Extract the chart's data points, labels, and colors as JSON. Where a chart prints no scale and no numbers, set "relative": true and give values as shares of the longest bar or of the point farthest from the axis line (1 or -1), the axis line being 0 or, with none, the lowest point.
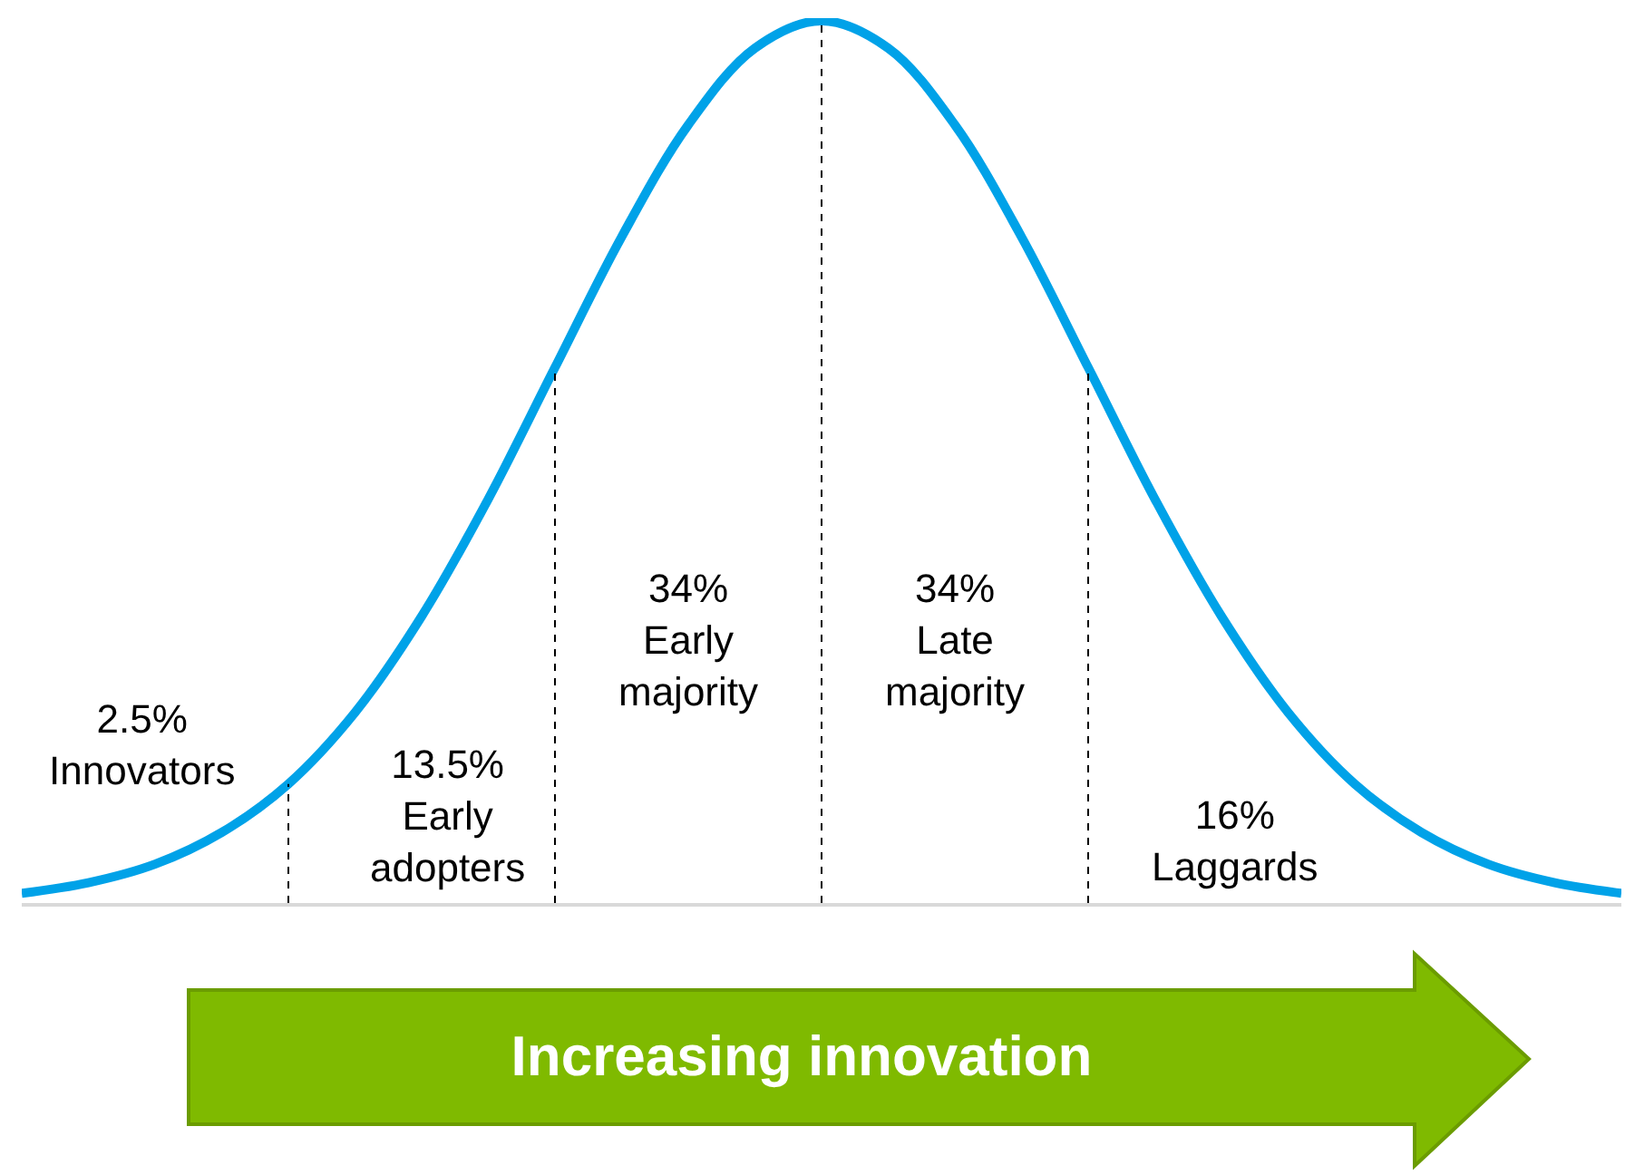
{
  "chart_data": {
    "type": "line",
    "relative": true,
    "categories": [
      null,
      null,
      null,
      null,
      null,
      null,
      null,
      null,
      null,
      null,
      null,
      null,
      null,
      null,
      null,
      null,
      null,
      null,
      null,
      null,
      null,
      null,
      null,
      null,
      null
    ],
    "series": [
      {
        "color": "#00a2e8",
        "values": [
          0.011,
          0.023,
          0.044,
          0.08,
          0.135,
          0.216,
          0.325,
          0.458,
          0.607,
          0.755,
          0.882,
          0.969,
          1,
          0.969,
          0.882,
          0.755,
          0.607,
          0.458,
          0.325,
          0.216,
          0.135,
          0.08,
          0.044,
          0.023,
          0.011
        ]
      }
    ],
    "annotations": [
      "2.5%\nInnovators",
      "13.5%\nEarly\nadopters",
      "34%\nEarly\nmajority",
      "34%\nLate\nmajority",
      "16%\nLaggards",
      "Increasing innovation"
    ],
    "legend": false
  }
}
